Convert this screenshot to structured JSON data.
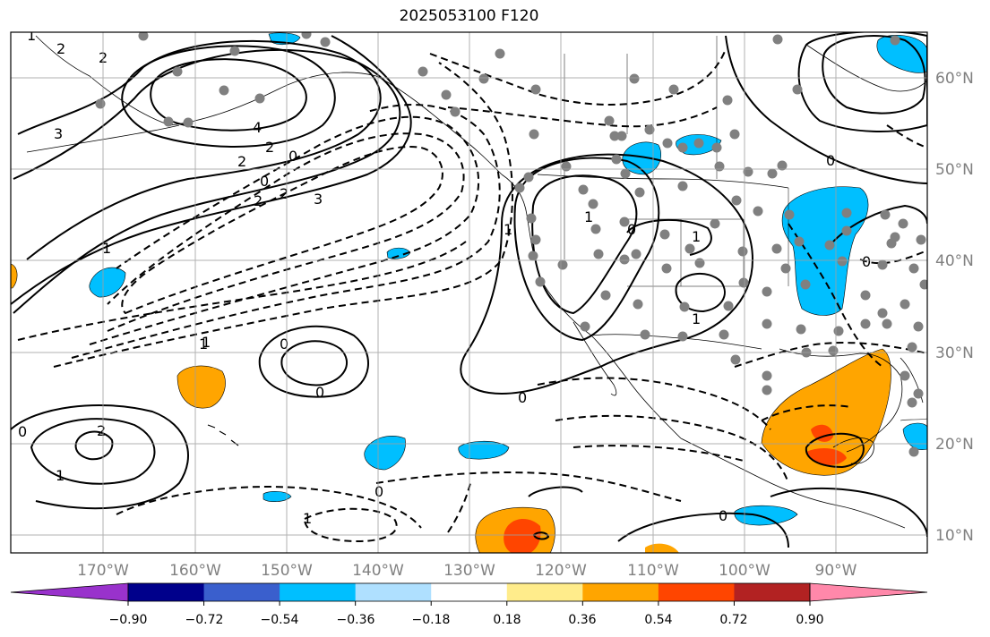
{
  "title": "2025053100 F120",
  "map": {
    "projection": "cylindrical",
    "lon_range": [
      -180,
      -80
    ],
    "lat_range": [
      8,
      65
    ],
    "grid": true,
    "lat_labels": [
      "60°N",
      "50°N",
      "40°N",
      "30°N",
      "20°N",
      "10°N"
    ],
    "lon_labels": [
      "170°W",
      "160°W",
      "150°W",
      "140°W",
      "130°W",
      "120°W",
      "110°W",
      "100°W",
      "90°W"
    ],
    "contour_labels": [
      "1",
      "2",
      "2",
      "3",
      "4",
      "2",
      "2",
      "0",
      "0",
      "2",
      "2",
      "3",
      "1",
      "1",
      "0",
      "0",
      "1",
      "1",
      "1",
      "1",
      "0",
      "0",
      "0",
      "2",
      "0",
      "1",
      "0",
      "1",
      "0",
      "0",
      "1"
    ],
    "colors": {
      "positive_light": "#ffa500",
      "positive_strong": "#ff4500",
      "negative": "#00bfff",
      "stations": "#808080",
      "contours": "#000000",
      "grid": "#a0a0a0"
    }
  },
  "colorbar": {
    "tick_labels": [
      "−0.90",
      "−0.72",
      "−0.54",
      "−0.36",
      "−0.18",
      "0.18",
      "0.36",
      "0.54",
      "0.72",
      "0.90"
    ],
    "colors": [
      "#9932cc",
      "#00008b",
      "#3a5fcd",
      "#00bfff",
      "#afe0ff",
      "#ffffff",
      "#ffec8b",
      "#ffa500",
      "#ff4500",
      "#b22222",
      "#ff88aa"
    ]
  }
}
